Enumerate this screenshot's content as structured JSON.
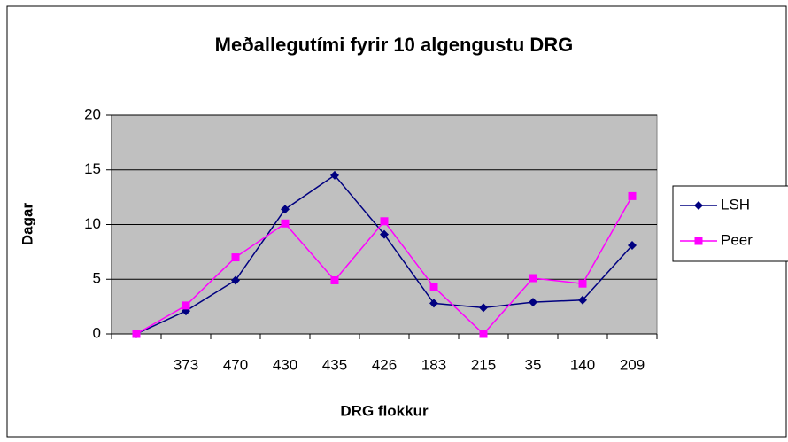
{
  "chart_data": {
    "type": "line",
    "title": "Meðallegutími fyrir 10 algengustu DRG",
    "xlabel": "DRG flokkur",
    "ylabel": "Dagar",
    "categories": [
      null,
      "373",
      "470",
      "430",
      "435",
      "426",
      "183",
      "215",
      "35",
      "140",
      "209"
    ],
    "series": [
      {
        "name": "LSH",
        "color": "#000080",
        "marker": "diamond",
        "values": [
          0,
          2.1,
          4.9,
          11.4,
          14.5,
          9.1,
          2.8,
          2.4,
          2.9,
          3.1,
          8.1
        ]
      },
      {
        "name": "Peer",
        "color": "#ff00ff",
        "marker": "square",
        "values": [
          0,
          2.6,
          7.0,
          10.1,
          4.9,
          10.3,
          4.3,
          0,
          5.1,
          4.6,
          12.6
        ]
      }
    ],
    "ylim": [
      0,
      20
    ],
    "yticks": [
      0,
      5,
      10,
      15,
      20
    ],
    "grid": true,
    "legend": "right"
  }
}
